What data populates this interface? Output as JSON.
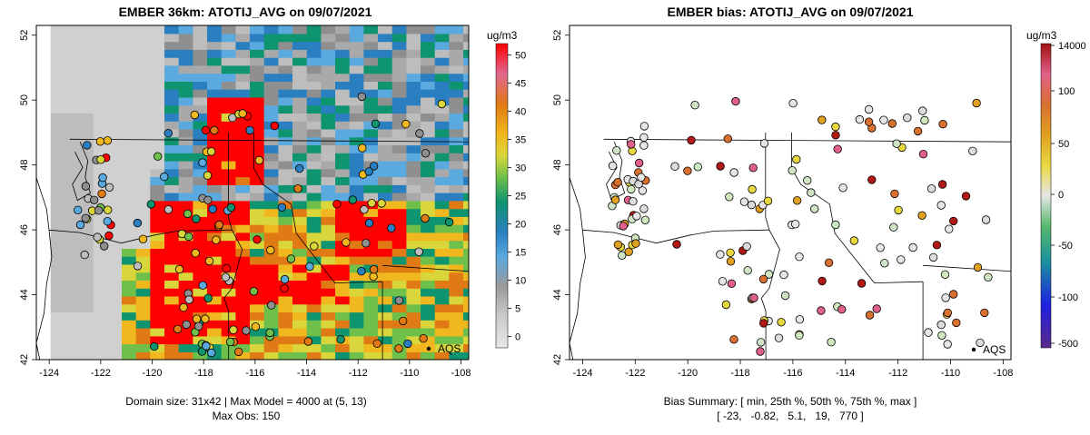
{
  "chart_data": [
    {
      "type": "heatmap",
      "title": "EMBER 36km: ATOTIJ_AVG on 09/07/2021",
      "xlim": [
        -124.5,
        -107.7
      ],
      "ylim": [
        42.0,
        52.3
      ],
      "x_ticks": [
        -124,
        -122,
        -120,
        -118,
        -116,
        -114,
        -112,
        -110,
        -108
      ],
      "y_ticks": [
        42,
        44,
        46,
        48,
        50,
        52
      ],
      "colorbar": {
        "title": "ug/m3",
        "ticks": [
          0,
          5,
          10,
          15,
          20,
          25,
          30,
          35,
          40,
          45,
          50
        ],
        "range": [
          -2,
          52
        ]
      },
      "annotation": "AQS",
      "caption_lines": [
        "Domain size: 31x42 | Max Model = 4000 at (5, 13)",
        "Max Obs: 150"
      ]
    },
    {
      "type": "scatter",
      "title": "EMBER bias: ATOTIJ_AVG on 09/07/2021",
      "xlim": [
        -124.5,
        -107.7
      ],
      "ylim": [
        42.0,
        52.3
      ],
      "x_ticks": [
        -124,
        -122,
        -120,
        -118,
        -116,
        -114,
        -112,
        -110,
        -108
      ],
      "y_ticks": [
        42,
        44,
        46,
        48,
        50,
        52
      ],
      "colorbar": {
        "title": "ug/m3",
        "tick_labels": [
          "14000",
          "100",
          "50",
          "0",
          "-50",
          "-100",
          "-500"
        ]
      },
      "annotation": "AQS",
      "caption_lines": [
        "Bias Summary: [ min, 25th %, 50th %, 75th %, max ]",
        "[ -23,   -0.82,   5.1,   19,   770 ]"
      ]
    }
  ]
}
